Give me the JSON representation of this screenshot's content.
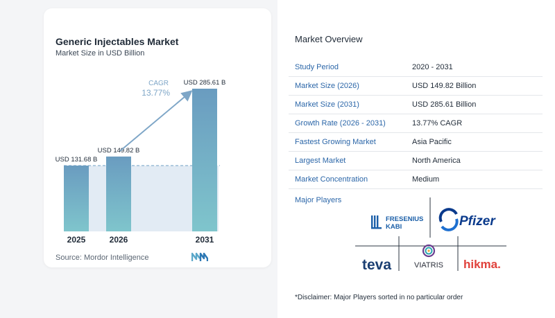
{
  "title": "Generic Injectables Market",
  "subtitle": "Market Size in USD Billion",
  "source": "Source:  Mordor Intelligence",
  "chart_data": {
    "type": "bar",
    "categories": [
      "2025",
      "2026",
      "2031"
    ],
    "values": [
      131.68,
      149.82,
      285.61
    ],
    "value_labels": [
      "USD 131.68 B",
      "USD 149.82 B",
      "USD 285.61 B"
    ],
    "ylim": [
      0,
      285.61
    ],
    "grid": false,
    "annotation": {
      "label": "CAGR",
      "value": "13.77%"
    },
    "colors": {
      "bar": "#6a9cc0",
      "bar_bottom": "#7fc5cc",
      "band": "#e2ebf4",
      "reference_line": "#6f9fc4",
      "arrow": "#7ea6c7"
    }
  },
  "overview": {
    "title": "Market Overview",
    "rows": [
      {
        "key": "Study Period",
        "value": "2020 - 2031"
      },
      {
        "key": "Market Size (2026)",
        "value": "USD 149.82 Billion"
      },
      {
        "key": "Market Size (2031)",
        "value": "USD 285.61 Billion"
      },
      {
        "key": "Growth Rate (2026 - 2031)",
        "value": "13.77% CAGR"
      },
      {
        "key": "Fastest Growing Market",
        "value": "Asia Pacific"
      },
      {
        "key": "Largest Market",
        "value": "North America"
      },
      {
        "key": "Market Concentration",
        "value": "Medium"
      }
    ],
    "key_color": "#2b66a8"
  },
  "players": {
    "label": "Major Players",
    "fresenius_line1": "FRESENIUS",
    "fresenius_line2": "KABI",
    "pfizer": "Pfizer",
    "teva": "teva",
    "viatris": "VIATRIS",
    "hikma": "hikma."
  },
  "disclaimer": "*Disclaimer: Major Players sorted in no particular order"
}
